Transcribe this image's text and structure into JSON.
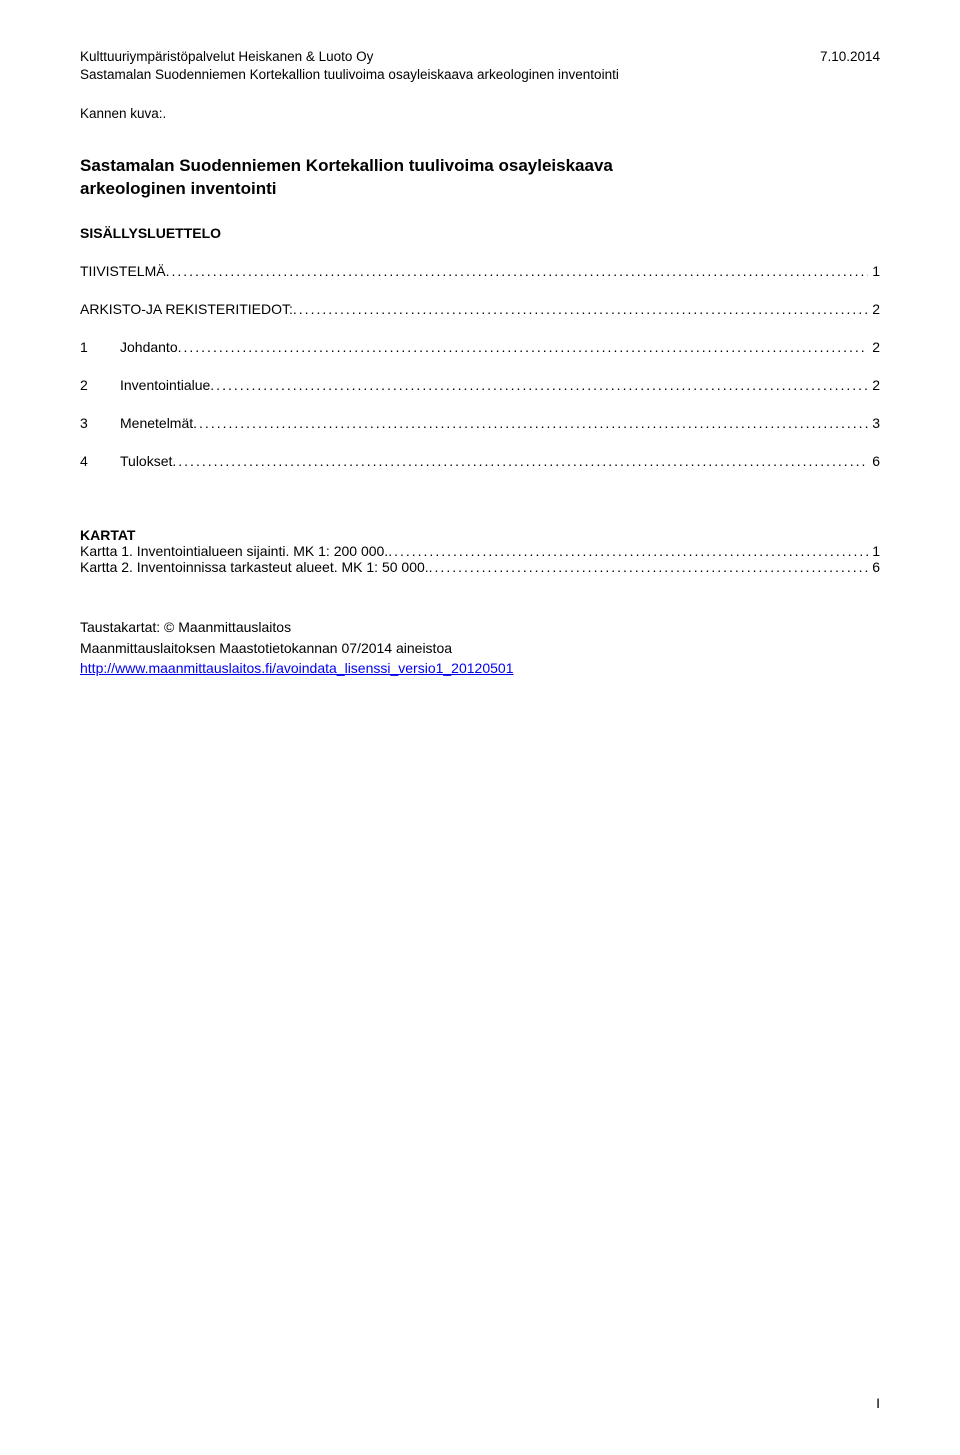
{
  "header": {
    "company": "Kulttuuriympäristöpalvelut Heiskanen & Luoto Oy",
    "date": "7.10.2014",
    "subtitle": "Sastamalan Suodenniemen Kortekallion tuulivoima osayleiskaava arkeologinen inventointi"
  },
  "kannen": "Kannen kuva:.",
  "title": {
    "line1": "Sastamalan Suodenniemen Kortekallion tuulivoima osayleiskaava",
    "line2": "arkeologinen inventointi"
  },
  "tocHeading": "SISÄLLYSLUETTELO",
  "toc": [
    {
      "num": "",
      "label": "TIIVISTELMÄ",
      "page": "1"
    },
    {
      "num": "",
      "label": "ARKISTO-JA REKISTERITIEDOT:",
      "page": "2"
    },
    {
      "num": "1",
      "label": "Johdanto",
      "page": "2"
    },
    {
      "num": "2",
      "label": "Inventointialue",
      "page": "2"
    },
    {
      "num": "3",
      "label": "Menetelmät",
      "page": "3"
    },
    {
      "num": "4",
      "label": "Tulokset",
      "page": "6"
    }
  ],
  "kartat": {
    "heading": "KARTAT",
    "items": [
      {
        "label": "Kartta 1. Inventointialueen sijainti. MK 1: 200 000. ",
        "page": "1"
      },
      {
        "label": "Kartta 2. Inventoinnissa tarkasteut alueet. MK 1: 50 000.",
        "page": "6"
      }
    ]
  },
  "tausta": {
    "line1": "Taustakartat: © Maanmittauslaitos",
    "line2": "Maanmittauslaitoksen Maastotietokannan 07/2014 aineistoa",
    "link": "http://www.maanmittauslaitos.fi/avoindata_lisenssi_versio1_20120501"
  },
  "pageNumber": "I"
}
